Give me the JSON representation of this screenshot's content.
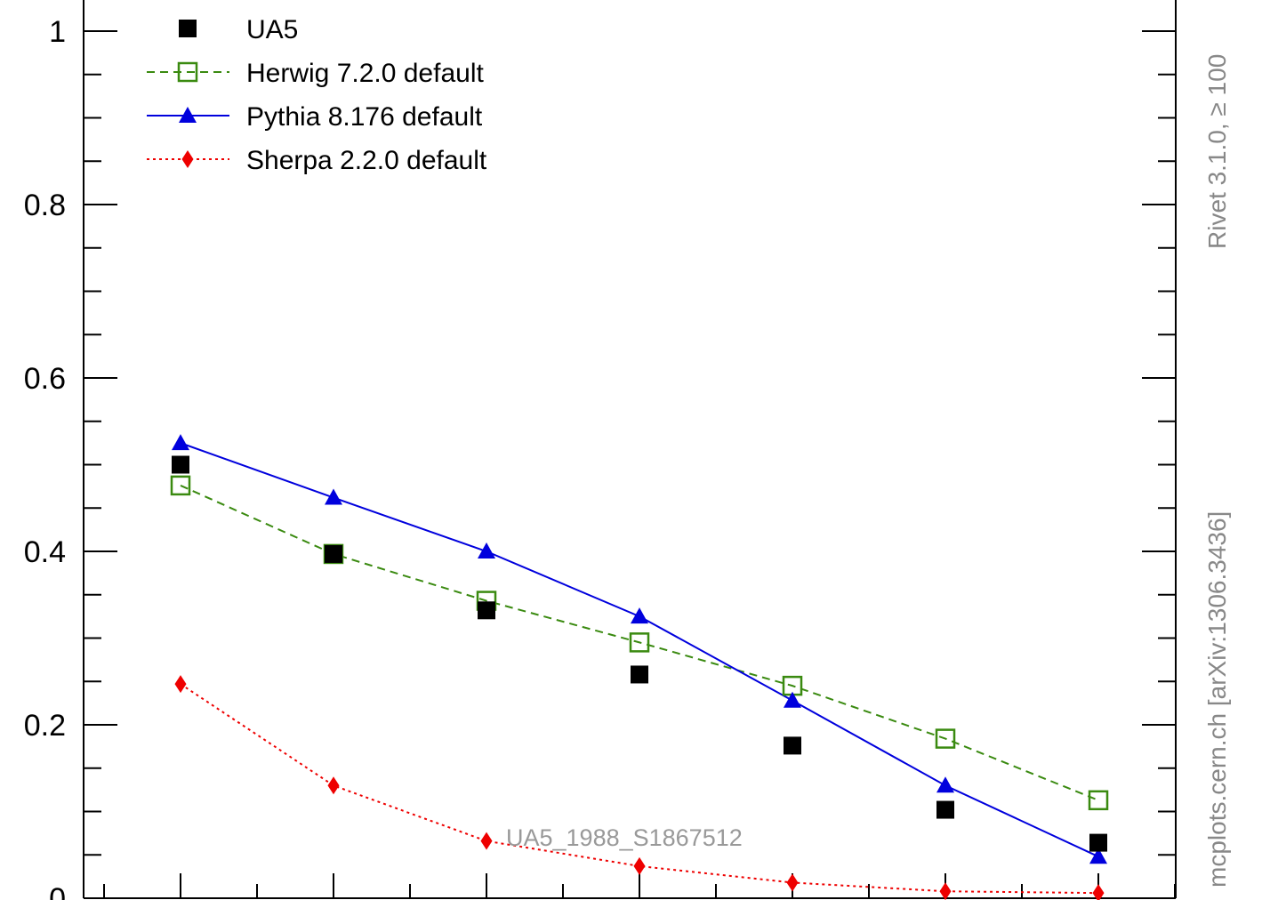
{
  "chart_data": {
    "type": "scatter",
    "ylim": [
      0,
      1.05
    ],
    "x": [
      1,
      2,
      3,
      4,
      5,
      6,
      7
    ],
    "yticks": [
      {
        "value": 0,
        "label": "0"
      },
      {
        "value": 0.2,
        "label": "0.2"
      },
      {
        "value": 0.4,
        "label": "0.4"
      },
      {
        "value": 0.6,
        "label": "0.6"
      },
      {
        "value": 0.8,
        "label": "0.8"
      },
      {
        "value": 1,
        "label": "1"
      }
    ],
    "series": [
      {
        "name": "UA5",
        "marker": "square-filled",
        "line": "none",
        "color": "#000000",
        "values": [
          0.5,
          0.397,
          0.332,
          0.258,
          0.176,
          0.102,
          0.064
        ]
      },
      {
        "name": "Herwig 7.2.0 default",
        "marker": "square-open",
        "line": "dashed",
        "color": "#3a8a10",
        "values": [
          0.476,
          0.397,
          0.343,
          0.295,
          0.245,
          0.184,
          0.113
        ]
      },
      {
        "name": "Pythia 8.176 default",
        "marker": "triangle",
        "line": "solid",
        "color": "#0000dd",
        "values": [
          0.525,
          0.462,
          0.4,
          0.325,
          0.228,
          0.13,
          0.048
        ]
      },
      {
        "name": "Sherpa 2.2.0 default",
        "marker": "diamond",
        "line": "dotted",
        "color": "#ee0000",
        "values": [
          0.247,
          0.13,
          0.066,
          0.037,
          0.018,
          0.008,
          0.006
        ]
      }
    ],
    "legend_placement": "top-left",
    "annotation": "UA5_1988_S1867512"
  },
  "side_labels": {
    "rivet": "Rivet 3.1.0, ≥ 100",
    "source": "mcplots.cern.ch [arXiv:1306.3436]"
  }
}
